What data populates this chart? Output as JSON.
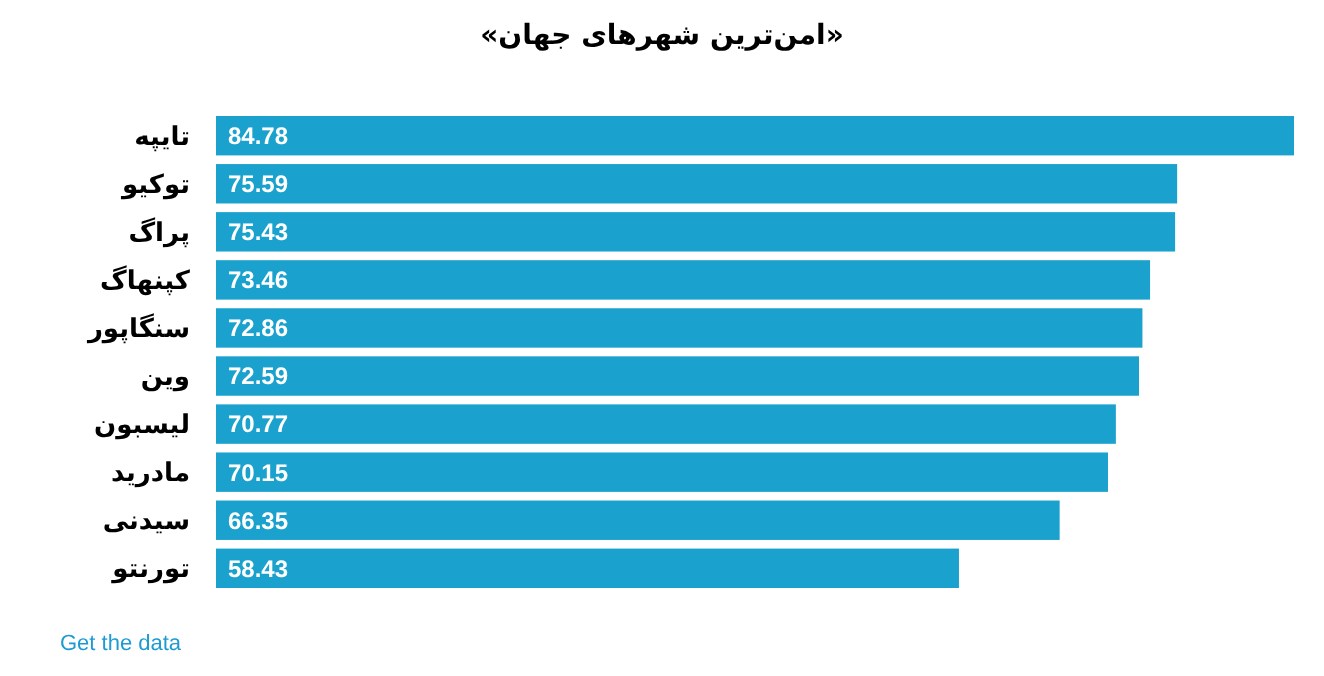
{
  "chart_data": {
    "type": "bar",
    "orientation": "horizontal",
    "title": "«امن‌ترین شهرهای جهان»",
    "categories": [
      "تایپه",
      "توکیو",
      "پراگ",
      "کپنهاگ",
      "سنگاپور",
      "وین",
      "لیسبون",
      "مادرید",
      "سیدنی",
      "تورنتو"
    ],
    "values": [
      84.78,
      75.59,
      75.43,
      73.46,
      72.86,
      72.59,
      70.77,
      70.15,
      66.35,
      58.43
    ],
    "color": "#1aa1cd",
    "data_labels": true,
    "annotations": [
      "Get the data"
    ]
  }
}
